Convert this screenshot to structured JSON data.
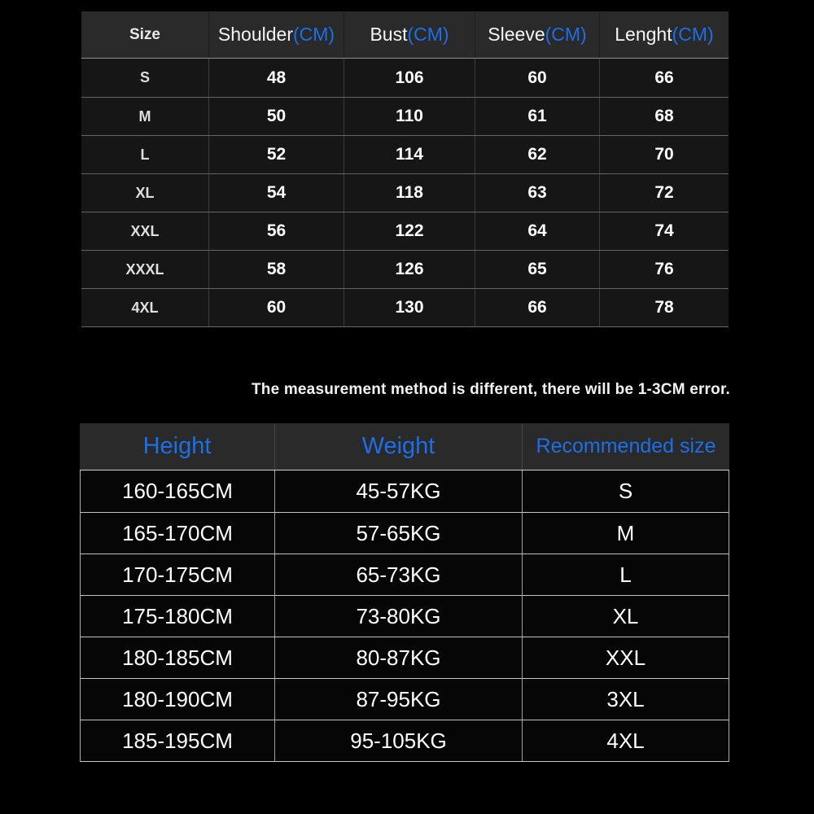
{
  "colors": {
    "background": "#000000",
    "header_bg": "#2a2a2a",
    "accent_blue": "#1c6fe8",
    "text_white": "#ffffff",
    "size_row_bg": "#161616",
    "fit_row_bg": "#060606"
  },
  "size_table": {
    "columns": [
      {
        "label": "Size",
        "unit": ""
      },
      {
        "label": "Shoulder",
        "unit": "(CM)"
      },
      {
        "label": "Bust",
        "unit": "(CM)"
      },
      {
        "label": "Sleeve",
        "unit": "(CM)"
      },
      {
        "label": "Lenght",
        "unit": "(CM)"
      }
    ],
    "rows": [
      [
        "S",
        "48",
        "106",
        "60",
        "66"
      ],
      [
        "M",
        "50",
        "110",
        "61",
        "68"
      ],
      [
        "L",
        "52",
        "114",
        "62",
        "70"
      ],
      [
        "XL",
        "54",
        "118",
        "63",
        "72"
      ],
      [
        "XXL",
        "56",
        "122",
        "64",
        "74"
      ],
      [
        "XXXL",
        "58",
        "126",
        "65",
        "76"
      ],
      [
        "4XL",
        "60",
        "130",
        "66",
        "78"
      ]
    ]
  },
  "note": {
    "text": "The measurement method is different, there will be 1-3CM error."
  },
  "fit_table": {
    "columns": [
      {
        "label": "Height",
        "unit": ""
      },
      {
        "label": "Weight",
        "unit": ""
      },
      {
        "label": "Recommended size",
        "unit": ""
      }
    ],
    "rows": [
      [
        "160-165CM",
        "45-57KG",
        "S"
      ],
      [
        "165-170CM",
        "57-65KG",
        "M"
      ],
      [
        "170-175CM",
        "65-73KG",
        "L"
      ],
      [
        "175-180CM",
        "73-80KG",
        "XL"
      ],
      [
        "180-185CM",
        "80-87KG",
        "XXL"
      ],
      [
        "180-190CM",
        "87-95KG",
        "3XL"
      ],
      [
        "185-195CM",
        "95-105KG",
        "4XL"
      ]
    ]
  },
  "chart_data": [
    {
      "type": "table",
      "title": "Garment size chart (CM)",
      "columns": [
        "Size",
        "Shoulder(CM)",
        "Bust(CM)",
        "Sleeve(CM)",
        "Lenght(CM)"
      ],
      "rows": [
        [
          "S",
          48,
          106,
          60,
          66
        ],
        [
          "M",
          50,
          110,
          61,
          68
        ],
        [
          "L",
          52,
          114,
          62,
          70
        ],
        [
          "XL",
          54,
          118,
          63,
          72
        ],
        [
          "XXL",
          56,
          122,
          64,
          74
        ],
        [
          "XXXL",
          58,
          126,
          65,
          76
        ],
        [
          "4XL",
          60,
          130,
          66,
          78
        ]
      ]
    },
    {
      "type": "table",
      "title": "Recommended size by height and weight",
      "columns": [
        "Height",
        "Weight",
        "Recommended size"
      ],
      "rows": [
        [
          "160-165CM",
          "45-57KG",
          "S"
        ],
        [
          "165-170CM",
          "57-65KG",
          "M"
        ],
        [
          "170-175CM",
          "65-73KG",
          "L"
        ],
        [
          "175-180CM",
          "73-80KG",
          "XL"
        ],
        [
          "180-185CM",
          "80-87KG",
          "XXL"
        ],
        [
          "180-190CM",
          "87-95KG",
          "3XL"
        ],
        [
          "185-195CM",
          "95-105KG",
          "4XL"
        ]
      ]
    }
  ]
}
